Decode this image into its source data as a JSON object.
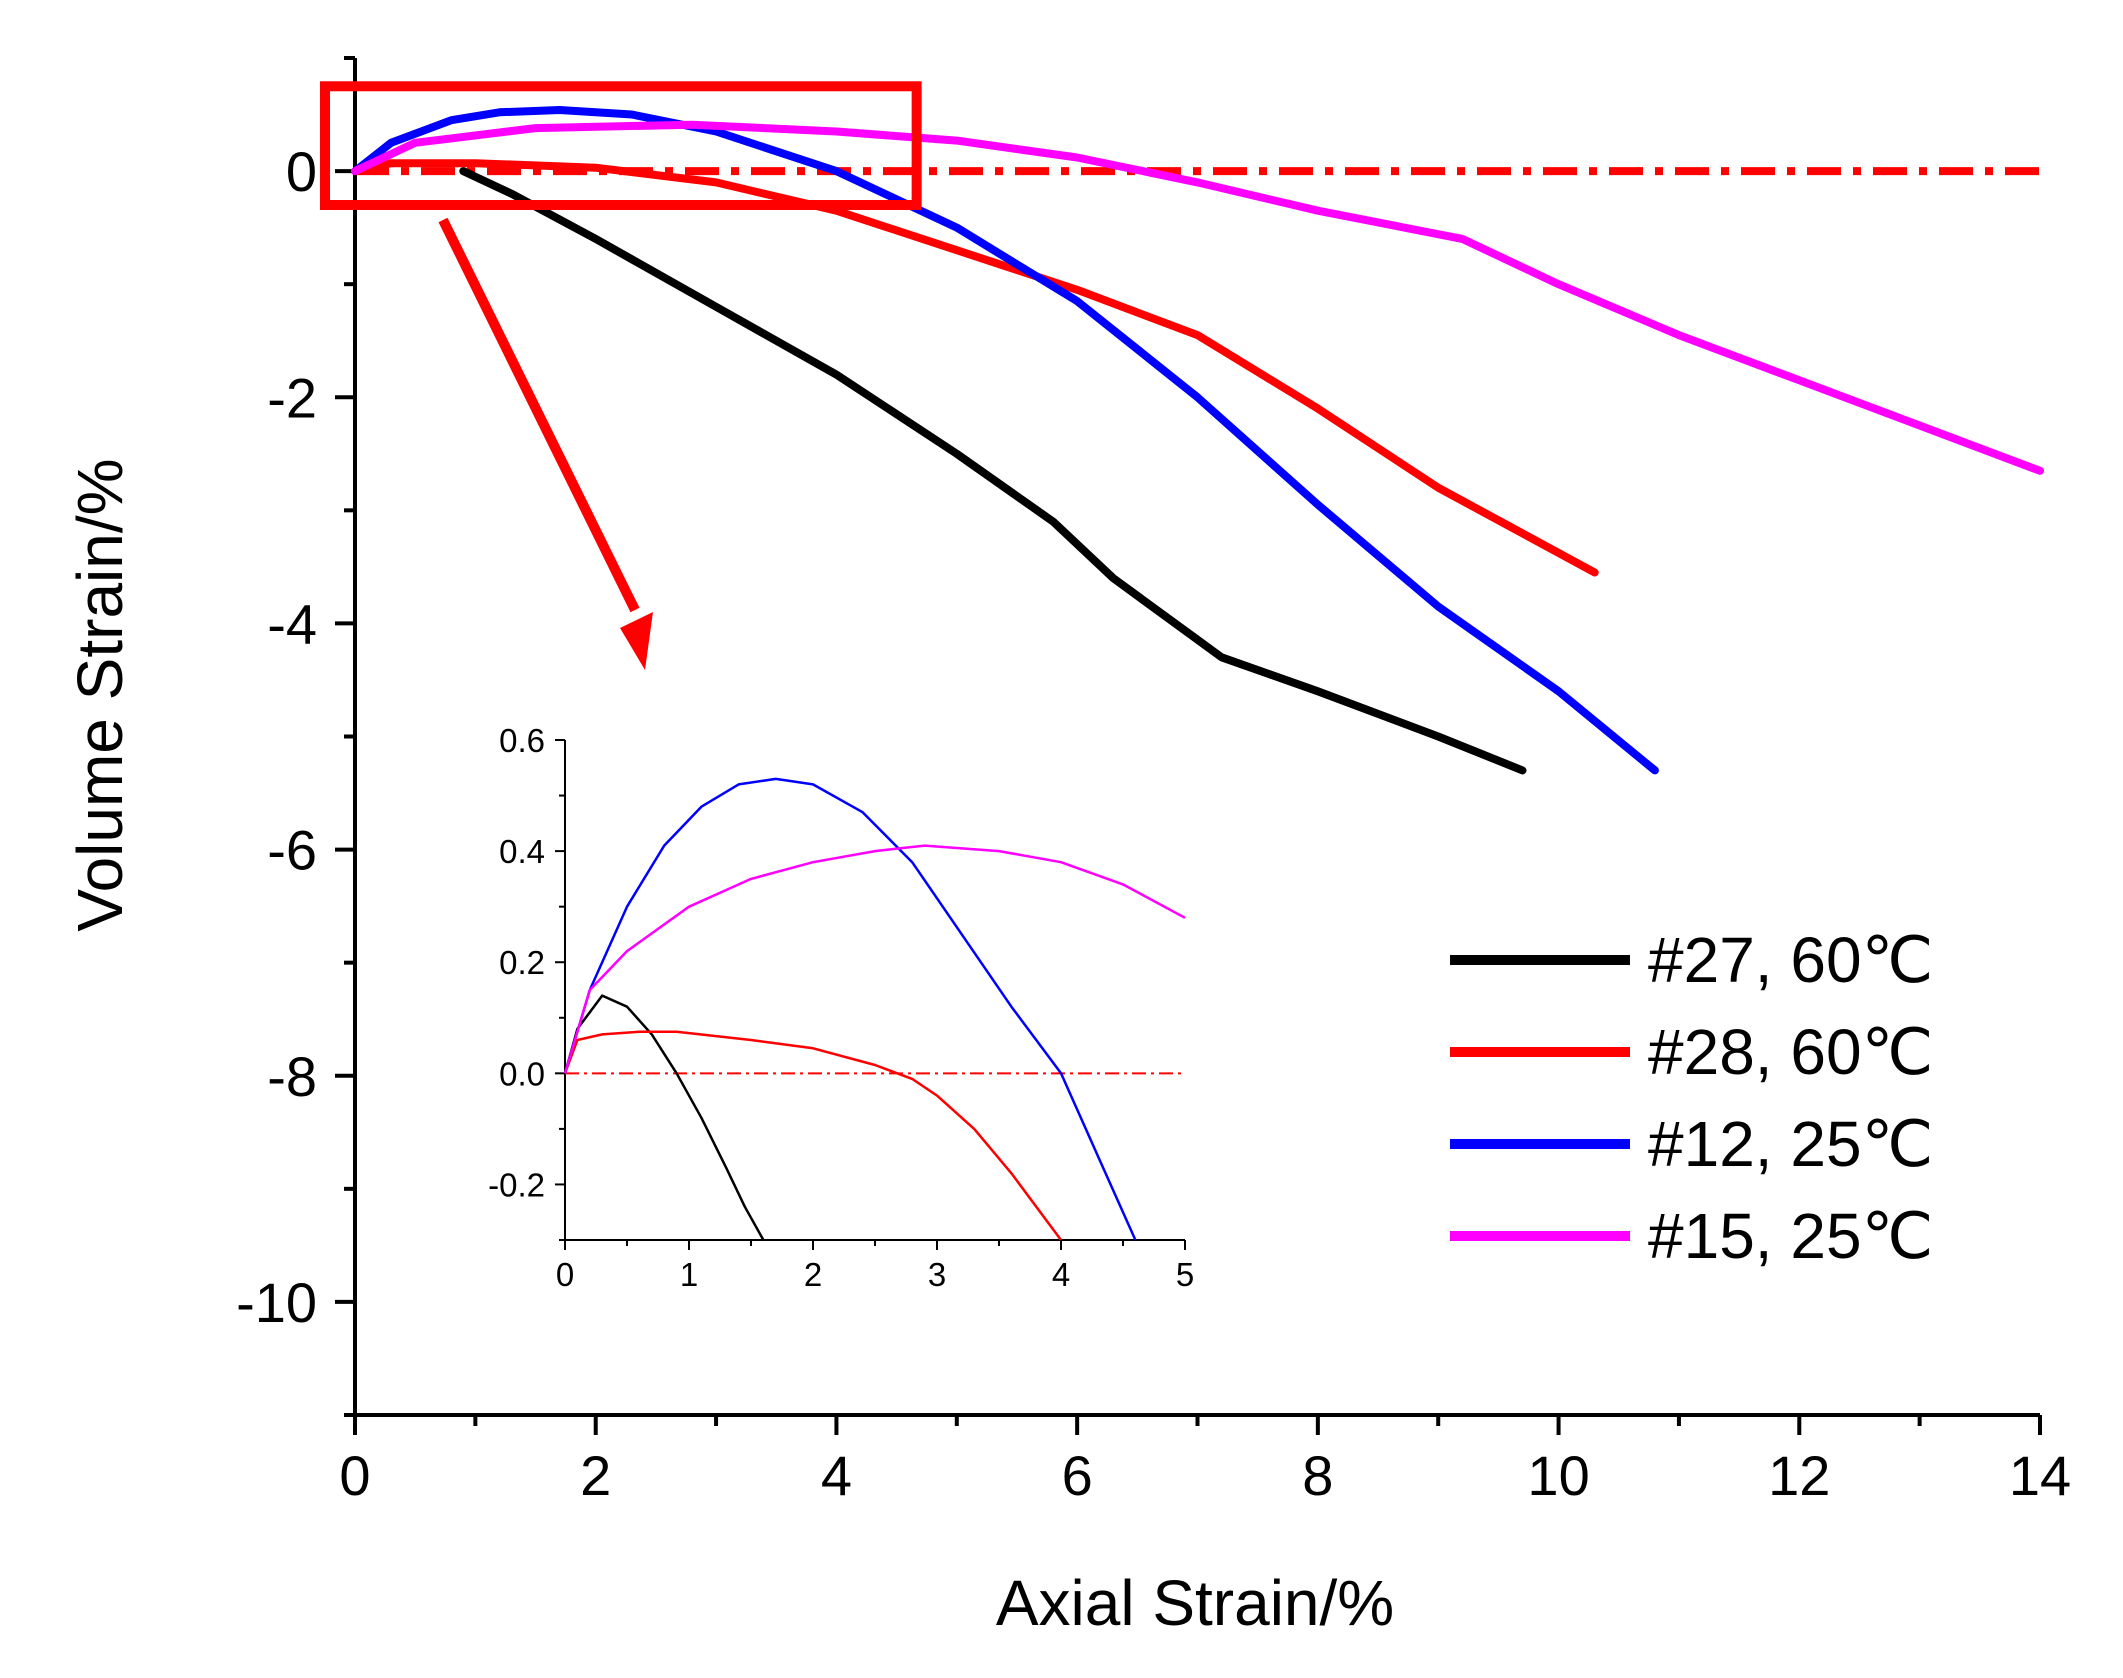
{
  "chart_data": {
    "type": "line",
    "main": {
      "xlabel": "Axial Strain/%",
      "ylabel": "Volume Strain/%",
      "xlim": [
        0,
        14
      ],
      "ylim": [
        -11,
        1
      ],
      "xticks": [
        0,
        2,
        4,
        6,
        8,
        10,
        12,
        14
      ],
      "yticks": [
        0,
        -2,
        -4,
        -6,
        -8,
        -10
      ],
      "xtick_labels": [
        "0",
        "2",
        "4",
        "6",
        "8",
        "10",
        "12",
        "14"
      ],
      "ytick_labels": [
        "0",
        "-2",
        "-4",
        "-6",
        "-8",
        "-10"
      ],
      "zero_reference": {
        "y": 0,
        "style": "dash-dot",
        "color": "#ff0000"
      },
      "series": [
        {
          "name": "#27, 60℃",
          "color": "#000000",
          "x": [
            0.9,
            1.3,
            2.0,
            3.0,
            4.0,
            5.0,
            5.8,
            6.3,
            7.2,
            8.0,
            9.0,
            9.7
          ],
          "y": [
            0.0,
            -0.2,
            -0.6,
            -1.2,
            -1.8,
            -2.5,
            -3.1,
            -3.6,
            -4.3,
            -4.6,
            -5.0,
            -5.3
          ]
        },
        {
          "name": "#28, 60℃",
          "color": "#ff0000",
          "x": [
            0,
            0.3,
            1.0,
            2.0,
            3.0,
            4.0,
            5.0,
            6.0,
            7.0,
            8.0,
            9.0,
            10.3
          ],
          "y": [
            0,
            0.07,
            0.07,
            0.03,
            -0.1,
            -0.35,
            -0.7,
            -1.05,
            -1.45,
            -2.1,
            -2.8,
            -3.55
          ]
        },
        {
          "name": "#12, 25℃",
          "color": "#0000ff",
          "x": [
            0,
            0.3,
            0.8,
            1.2,
            1.7,
            2.3,
            3.0,
            4.0,
            5.0,
            6.0,
            7.0,
            8.0,
            9.0,
            10.0,
            10.8
          ],
          "y": [
            0,
            0.25,
            0.45,
            0.52,
            0.54,
            0.5,
            0.35,
            0.0,
            -0.5,
            -1.15,
            -2.0,
            -2.95,
            -3.85,
            -4.6,
            -5.3
          ]
        },
        {
          "name": "#15, 25℃",
          "color": "#ff00ff",
          "x": [
            0,
            0.5,
            1.5,
            2.8,
            4.0,
            5.0,
            6.0,
            7.0,
            8.0,
            9.2,
            10.0,
            11.0,
            12.0,
            13.0,
            14.0
          ],
          "y": [
            0,
            0.25,
            0.38,
            0.41,
            0.35,
            0.27,
            0.12,
            -0.1,
            -0.35,
            -0.6,
            -1.0,
            -1.45,
            -1.85,
            -2.25,
            -2.65
          ]
        }
      ]
    },
    "inset": {
      "xlim": [
        0,
        5
      ],
      "ylim": [
        -0.3,
        0.6
      ],
      "xticks": [
        0,
        1,
        2,
        3,
        4,
        5
      ],
      "yticks": [
        0.6,
        0.4,
        0.2,
        0.0,
        -0.2
      ],
      "xtick_labels": [
        "0",
        "1",
        "2",
        "3",
        "4",
        "5"
      ],
      "ytick_labels": [
        "0.6",
        "0.4",
        "0.2",
        "0.0",
        "-0.2"
      ],
      "series": [
        {
          "name": "#27, 60℃",
          "color": "#000000",
          "x": [
            0,
            0.1,
            0.3,
            0.5,
            0.7,
            0.9,
            1.1,
            1.3,
            1.45,
            1.6
          ],
          "y": [
            0,
            0.08,
            0.14,
            0.12,
            0.07,
            0.0,
            -0.08,
            -0.17,
            -0.24,
            -0.3
          ]
        },
        {
          "name": "#28, 60℃",
          "color": "#ff0000",
          "x": [
            0,
            0.1,
            0.3,
            0.6,
            0.9,
            1.5,
            2.0,
            2.5,
            2.8,
            3.0,
            3.3,
            3.6,
            4.0
          ],
          "y": [
            0,
            0.06,
            0.07,
            0.075,
            0.075,
            0.06,
            0.045,
            0.015,
            -0.01,
            -0.04,
            -0.1,
            -0.18,
            -0.3
          ]
        },
        {
          "name": "#12, 25℃",
          "color": "#0000ff",
          "x": [
            0,
            0.2,
            0.5,
            0.8,
            1.1,
            1.4,
            1.7,
            2.0,
            2.4,
            2.8,
            3.2,
            3.6,
            4.0,
            4.3,
            4.6
          ],
          "y": [
            0,
            0.15,
            0.3,
            0.41,
            0.48,
            0.52,
            0.53,
            0.52,
            0.47,
            0.38,
            0.25,
            0.12,
            0.0,
            -0.15,
            -0.3
          ]
        },
        {
          "name": "#15, 25℃",
          "color": "#ff00ff",
          "x": [
            0,
            0.2,
            0.5,
            1.0,
            1.5,
            2.0,
            2.5,
            2.9,
            3.5,
            4.0,
            4.5,
            5.0
          ],
          "y": [
            0,
            0.15,
            0.22,
            0.3,
            0.35,
            0.38,
            0.4,
            0.41,
            0.4,
            0.38,
            0.34,
            0.28
          ]
        }
      ],
      "zero_reference": {
        "y": 0,
        "style": "dash-dot",
        "color": "#ff0000"
      }
    },
    "legend": {
      "placement": "right",
      "entries": [
        {
          "label": "#27, 60℃",
          "color": "#000000"
        },
        {
          "label": "#28, 60℃",
          "color": "#ff0000"
        },
        {
          "label": "#12, 25℃",
          "color": "#0000ff"
        },
        {
          "label": "#15, 25℃",
          "color": "#ff00ff"
        }
      ]
    },
    "zoom_box": {
      "x_range": [
        0,
        4.6
      ],
      "y_range": [
        -0.3,
        0.75
      ],
      "color": "#ff0000"
    }
  }
}
